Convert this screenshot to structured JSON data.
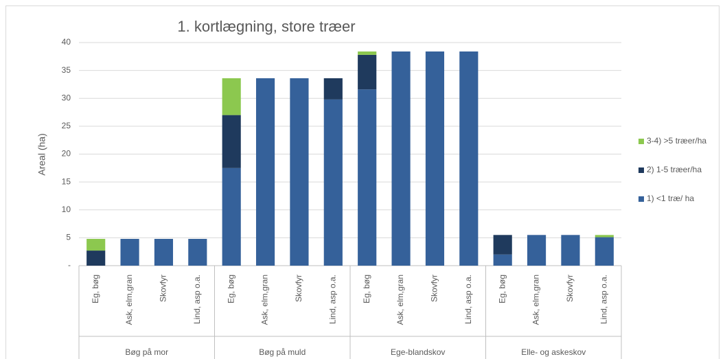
{
  "chart_data": {
    "type": "stacked_bar",
    "title": "1. kortlægning, store træer",
    "y_label": "Areal (ha)",
    "category_groups": [
      "Bøg på mor",
      "Bøg på muld",
      "Ege-blandskov",
      "Elle- og askeskov"
    ],
    "categories": [
      "Eg, bøg",
      "Ask, elm,gran",
      "Skovfyr",
      "Lind, asp o.a.",
      "Eg, bøg",
      "Ask, elm,gran",
      "Skovfyr",
      "Lind, asp o.a.",
      "Eg, bøg",
      "Ask, elm,gran",
      "Skovfyr",
      "Lind, asp o.a.",
      "Eg, bøg",
      "Ask, elm,gran",
      "Skovfyr",
      "Lind, asp o.a."
    ],
    "series": [
      {
        "name": "1) <1 træ/ ha",
        "color": "#35619a",
        "values": [
          0,
          4.8,
          4.8,
          4.8,
          17.5,
          33.6,
          33.6,
          29.8,
          31.6,
          38.4,
          38.4,
          38.4,
          2.0,
          5.5,
          5.5,
          5.1
        ]
      },
      {
        "name": "2) 1-5 træer/ha",
        "color": "#1f3a5d",
        "values": [
          2.7,
          0,
          0,
          0,
          9.5,
          0,
          0,
          3.8,
          6.2,
          0,
          0,
          0,
          3.5,
          0,
          0,
          0
        ]
      },
      {
        "name": "3-4) >5 træer/ha",
        "color": "#8cc84f",
        "values": [
          2.1,
          0,
          0,
          0,
          6.6,
          0,
          0,
          0,
          0.6,
          0,
          0,
          0,
          0,
          0,
          0,
          0.4
        ]
      }
    ],
    "ylim": [
      0,
      40
    ],
    "yticks": [
      {
        "value": 0,
        "label": "-"
      },
      5,
      10,
      15,
      20,
      25,
      30,
      35,
      40
    ],
    "grid": true,
    "legend": "right"
  }
}
